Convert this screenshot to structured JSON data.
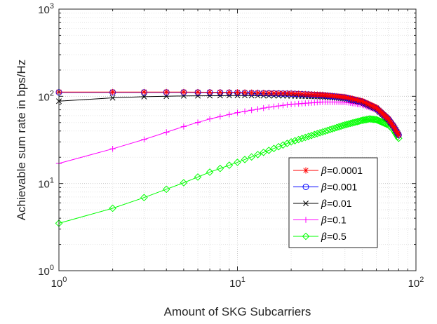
{
  "chart_data": {
    "type": "line",
    "xlabel": "Amount of SKG Subcarriers",
    "ylabel": "Achievable sum rate in bps/Hz",
    "x_scale": "log",
    "y_scale": "log",
    "xlim": [
      1,
      100
    ],
    "ylim": [
      1,
      1000
    ],
    "x_ticks": [
      {
        "value": 1,
        "base": "10",
        "exp": "0"
      },
      {
        "value": 10,
        "base": "10",
        "exp": "1"
      },
      {
        "value": 100,
        "base": "10",
        "exp": "2"
      }
    ],
    "y_ticks": [
      {
        "value": 1,
        "base": "10",
        "exp": "0"
      },
      {
        "value": 10,
        "base": "10",
        "exp": "1"
      },
      {
        "value": 100,
        "base": "10",
        "exp": "2"
      },
      {
        "value": 1000,
        "base": "10",
        "exp": "3"
      }
    ],
    "grid": true,
    "legend_position": "bottom-right",
    "n_max": 80,
    "series": [
      {
        "name": "β=0.0001",
        "symbol": "β",
        "value_label": "=0.0001",
        "color": "#ff0000",
        "marker": "asterisk",
        "x": [
          1,
          2,
          5,
          10,
          20,
          30,
          40,
          50,
          60,
          70,
          75,
          80
        ],
        "y": [
          112,
          112,
          112,
          111,
          108,
          104,
          98,
          88,
          74,
          55,
          45,
          36
        ]
      },
      {
        "name": "β=0.001",
        "symbol": "β",
        "value_label": "=0.001",
        "color": "#0000ff",
        "marker": "circle",
        "x": [
          1,
          2,
          5,
          10,
          20,
          30,
          40,
          50,
          60,
          70,
          75,
          80
        ],
        "y": [
          111,
          111,
          111,
          110,
          107,
          103,
          97,
          87,
          73,
          55,
          45,
          36
        ]
      },
      {
        "name": "β=0.01",
        "symbol": "β",
        "value_label": "=0.01",
        "color": "#000000",
        "marker": "x",
        "x": [
          1,
          2,
          3,
          5,
          10,
          20,
          30,
          40,
          50,
          60,
          70,
          75,
          80
        ],
        "y": [
          88,
          96,
          99,
          101,
          102,
          101,
          99,
          94,
          85,
          72,
          54,
          45,
          36
        ]
      },
      {
        "name": "β=0.1",
        "symbol": "β",
        "value_label": "=0.1",
        "color": "#ff00ff",
        "marker": "plus",
        "x": [
          1,
          2,
          3,
          5,
          7,
          10,
          15,
          20,
          30,
          40,
          50,
          60,
          70,
          75,
          80
        ],
        "y": [
          17,
          25,
          32,
          45,
          55,
          65,
          75,
          81,
          86,
          86,
          80,
          70,
          54,
          45,
          35
        ]
      },
      {
        "name": "β=0.5",
        "symbol": "β",
        "value_label": "=0.5",
        "color": "#00ff00",
        "marker": "diamond",
        "x": [
          1,
          2,
          3,
          5,
          7,
          10,
          15,
          20,
          30,
          40,
          50,
          55,
          60,
          70,
          75,
          80
        ],
        "y": [
          3.5,
          5.2,
          6.9,
          10.2,
          13.5,
          17.5,
          24,
          30,
          39,
          47,
          53,
          55,
          54,
          47,
          41,
          33
        ]
      }
    ]
  }
}
